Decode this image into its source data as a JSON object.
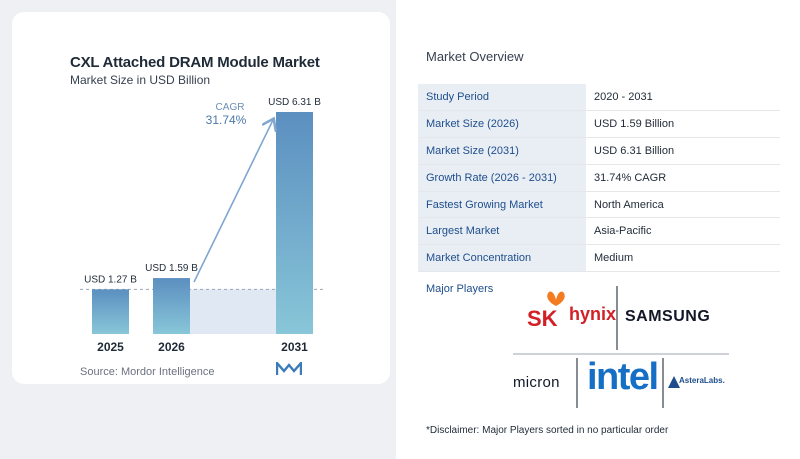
{
  "chart_data": {
    "type": "bar",
    "title": "CXL Attached DRAM Module Market",
    "subtitle": "Market Size in USD Billion",
    "categories": [
      "2025",
      "2026",
      "2031"
    ],
    "values": [
      1.27,
      1.59,
      6.31
    ],
    "data_labels": [
      "USD 1.27 B",
      "USD 1.59 B",
      "USD 6.31 B"
    ],
    "cagr_label": "CAGR",
    "cagr_value": "31.74%",
    "ylim": [
      0,
      6.5
    ],
    "colors": {
      "bar_top": "#5b8fc0",
      "bar_bottom": "#88c6d8",
      "arrow": "#7ea6cf",
      "band": "#dfe8f3",
      "dash": "#98a6b8"
    }
  },
  "source": "Source:  Mordor Intelligence",
  "overview": {
    "title": "Market Overview",
    "rows": [
      {
        "key": "Study Period",
        "value": "2020 - 2031"
      },
      {
        "key": "Market Size (2026)",
        "value": "USD 1.59 Billion"
      },
      {
        "key": "Market Size (2031)",
        "value": "USD 6.31 Billion"
      },
      {
        "key": "Growth Rate (2026 - 2031)",
        "value": "31.74% CAGR"
      },
      {
        "key": "Fastest Growing Market",
        "value": "North America"
      },
      {
        "key": "Largest Market",
        "value": "Asia-Pacific"
      },
      {
        "key": "Market Concentration",
        "value": "Medium"
      }
    ],
    "players_label": "Major Players",
    "players": {
      "sk": "SK",
      "hynix": "hynix",
      "samsung": "SAMSUNG",
      "micron": "micron",
      "intel": "intel",
      "astera": "AsteraLabs."
    },
    "disclaimer": "*Disclaimer: Major Players sorted in no particular order"
  }
}
